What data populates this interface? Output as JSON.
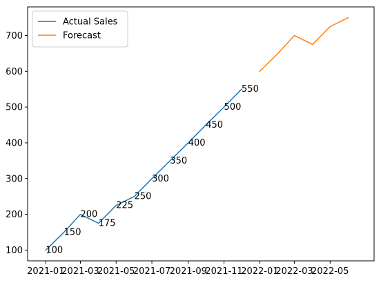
{
  "chart_data": {
    "type": "line",
    "title": "",
    "xlabel": "",
    "ylabel": "",
    "legend_position": "upper-left",
    "grid": false,
    "x_axis": {
      "type": "date",
      "range": [
        "2020-12-01",
        "2022-07-15"
      ],
      "ticks": [
        "2021-01-01",
        "2021-03-01",
        "2021-05-01",
        "2021-07-01",
        "2021-09-01",
        "2021-11-01",
        "2022-01-01",
        "2022-03-01",
        "2022-05-01"
      ],
      "tick_labels": [
        "2021-01",
        "2021-03",
        "2021-05",
        "2021-07",
        "2021-09",
        "2021-11",
        "2022-01",
        "2022-03",
        "2022-05"
      ]
    },
    "y_axis": {
      "range": [
        70,
        780
      ],
      "ticks": [
        100,
        200,
        300,
        400,
        500,
        600,
        700
      ],
      "tick_labels": [
        "100",
        "200",
        "300",
        "400",
        "500",
        "600",
        "700"
      ]
    },
    "series": [
      {
        "name": "Actual Sales",
        "color": "#1f77b4",
        "show_data_labels": true,
        "x": [
          "2021-01-01",
          "2021-02-01",
          "2021-03-01",
          "2021-04-01",
          "2021-05-01",
          "2021-06-01",
          "2021-07-01",
          "2021-08-01",
          "2021-09-01",
          "2021-10-01",
          "2021-11-01",
          "2021-12-01"
        ],
        "values": [
          100,
          150,
          200,
          175,
          225,
          250,
          300,
          350,
          400,
          450,
          500,
          550
        ],
        "data_labels": [
          "100",
          "150",
          "200",
          "175",
          "225",
          "250",
          "300",
          "350",
          "400",
          "450",
          "500",
          "550"
        ]
      },
      {
        "name": "Forecast",
        "color": "#ff7f0e",
        "show_data_labels": false,
        "x": [
          "2022-01-01",
          "2022-02-01",
          "2022-03-01",
          "2022-04-01",
          "2022-05-01",
          "2022-06-01"
        ],
        "values": [
          600,
          650,
          700,
          675,
          725,
          750
        ]
      }
    ]
  }
}
